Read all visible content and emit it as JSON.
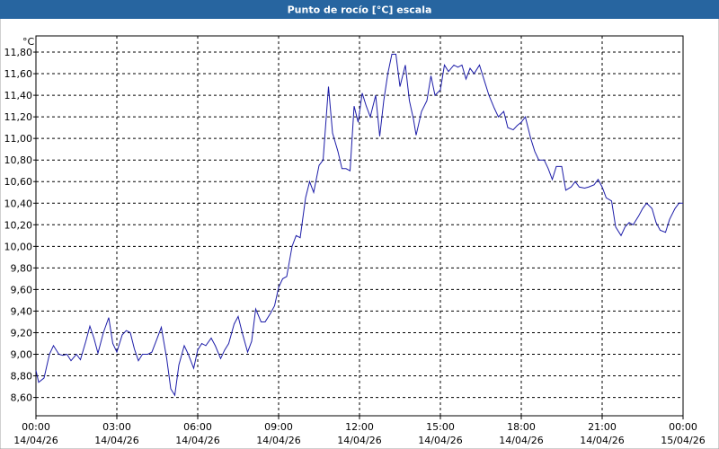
{
  "chart_data": {
    "type": "line",
    "title": "Punto de rocío [°C] escala",
    "y_unit": "°C",
    "color": "#1c1ca8",
    "grid": true,
    "xlim": [
      0,
      24
    ],
    "ylim": [
      8.43,
      11.95
    ],
    "xticks": [
      {
        "value": 0,
        "label": "00:00",
        "date": "14/04/26"
      },
      {
        "value": 3,
        "label": "03:00",
        "date": "14/04/26"
      },
      {
        "value": 6,
        "label": "06:00",
        "date": "14/04/26"
      },
      {
        "value": 9,
        "label": "09:00",
        "date": "14/04/26"
      },
      {
        "value": 12,
        "label": "12:00",
        "date": "14/04/26"
      },
      {
        "value": 15,
        "label": "15:00",
        "date": "14/04/26"
      },
      {
        "value": 18,
        "label": "18:00",
        "date": "14/04/26"
      },
      {
        "value": 21,
        "label": "21:00",
        "date": "14/04/26"
      },
      {
        "value": 24,
        "label": "00:00",
        "date": "15/04/26"
      }
    ],
    "yticks": [
      {
        "value": 8.6,
        "label": "8,60"
      },
      {
        "value": 8.8,
        "label": "8,80"
      },
      {
        "value": 9.0,
        "label": "9,00"
      },
      {
        "value": 9.2,
        "label": "9,20"
      },
      {
        "value": 9.4,
        "label": "9,40"
      },
      {
        "value": 9.6,
        "label": "9,60"
      },
      {
        "value": 9.8,
        "label": "9,80"
      },
      {
        "value": 10.0,
        "label": "10,00"
      },
      {
        "value": 10.2,
        "label": "10,20"
      },
      {
        "value": 10.4,
        "label": "10,40"
      },
      {
        "value": 10.6,
        "label": "10,60"
      },
      {
        "value": 10.8,
        "label": "10,80"
      },
      {
        "value": 11.0,
        "label": "11,00"
      },
      {
        "value": 11.2,
        "label": "11,20"
      },
      {
        "value": 11.4,
        "label": "11,40"
      },
      {
        "value": 11.6,
        "label": "11,60"
      },
      {
        "value": 11.8,
        "label": "11,80"
      }
    ],
    "x": [
      0,
      0.1,
      0.3,
      0.5,
      0.65,
      0.85,
      1,
      1.15,
      1.3,
      1.5,
      1.65,
      1.85,
      2,
      2.15,
      2.3,
      2.5,
      2.7,
      2.85,
      3,
      3.2,
      3.35,
      3.5,
      3.65,
      3.8,
      3.95,
      4.15,
      4.3,
      4.5,
      4.65,
      4.85,
      5,
      5.15,
      5.3,
      5.5,
      5.65,
      5.85,
      6,
      6.15,
      6.3,
      6.5,
      6.65,
      6.85,
      7,
      7.15,
      7.35,
      7.5,
      7.65,
      7.85,
      8,
      8.15,
      8.35,
      8.5,
      8.7,
      8.85,
      9,
      9.15,
      9.3,
      9.5,
      9.65,
      9.8,
      10,
      10.15,
      10.3,
      10.5,
      10.65,
      10.85,
      11,
      11.2,
      11.35,
      11.5,
      11.65,
      11.8,
      11.95,
      12.1,
      12.25,
      12.4,
      12.6,
      12.75,
      12.9,
      13.05,
      13.2,
      13.35,
      13.5,
      13.7,
      13.85,
      14,
      14.1,
      14.3,
      14.5,
      14.65,
      14.8,
      15,
      15.15,
      15.3,
      15.5,
      15.65,
      15.8,
      15.95,
      16.1,
      16.25,
      16.45,
      16.65,
      16.8,
      17,
      17.15,
      17.35,
      17.5,
      17.7,
      17.85,
      18,
      18.15,
      18.35,
      18.5,
      18.65,
      18.85,
      19,
      19.15,
      19.3,
      19.5,
      19.65,
      19.85,
      20,
      20.15,
      20.35,
      20.5,
      20.7,
      20.85,
      21,
      21.15,
      21.35,
      21.5,
      21.7,
      21.85,
      22,
      22.15,
      22.35,
      22.5,
      22.65,
      22.85,
      23,
      23.15,
      23.35,
      23.5,
      23.7,
      23.85,
      24
    ],
    "values": [
      8.85,
      8.74,
      8.78,
      9.0,
      9.08,
      9.0,
      8.99,
      9.0,
      8.94,
      9.0,
      8.95,
      9.12,
      9.26,
      9.15,
      9.01,
      9.2,
      9.34,
      9.1,
      9.02,
      9.18,
      9.22,
      9.2,
      9.05,
      8.94,
      9.0,
      9.0,
      9.02,
      9.15,
      9.25,
      8.96,
      8.68,
      8.62,
      8.9,
      9.08,
      9.0,
      8.87,
      9.04,
      9.1,
      9.08,
      9.15,
      9.08,
      8.96,
      9.04,
      9.1,
      9.28,
      9.35,
      9.2,
      9.02,
      9.12,
      9.42,
      9.3,
      9.3,
      9.38,
      9.45,
      9.62,
      9.7,
      9.72,
      10.0,
      10.1,
      10.08,
      10.45,
      10.6,
      10.5,
      10.75,
      10.8,
      11.48,
      11.05,
      10.88,
      10.72,
      10.72,
      10.7,
      11.3,
      11.15,
      11.42,
      11.3,
      11.2,
      11.4,
      11.02,
      11.35,
      11.6,
      11.78,
      11.78,
      11.48,
      11.68,
      11.35,
      11.18,
      11.03,
      11.25,
      11.35,
      11.58,
      11.4,
      11.45,
      11.68,
      11.62,
      11.68,
      11.66,
      11.68,
      11.55,
      11.65,
      11.6,
      11.68,
      11.52,
      11.4,
      11.28,
      11.2,
      11.25,
      11.1,
      11.08,
      11.12,
      11.15,
      11.2,
      11.0,
      10.88,
      10.8,
      10.8,
      10.72,
      10.62,
      10.74,
      10.74,
      10.52,
      10.55,
      10.6,
      10.55,
      10.54,
      10.55,
      10.57,
      10.62,
      10.55,
      10.45,
      10.42,
      10.18,
      10.1,
      10.18,
      10.22,
      10.2,
      10.28,
      10.35,
      10.4,
      10.35,
      10.22,
      10.15,
      10.13,
      10.25,
      10.35,
      10.4,
      10.4
    ]
  }
}
